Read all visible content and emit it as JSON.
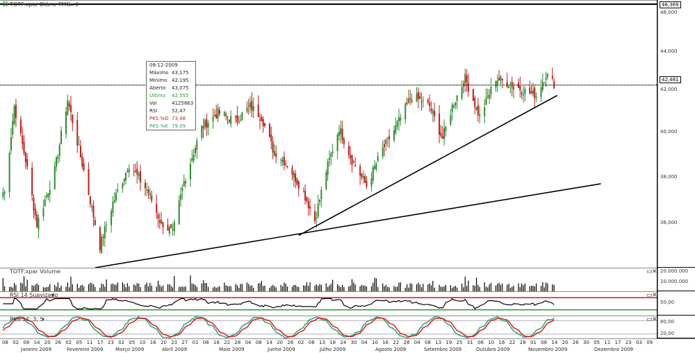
{
  "header": {
    "title": "TOTF:xpar Diário TMG=0",
    "menu_arrow": "▾"
  },
  "price_axis": {
    "ticks": [
      "46,000",
      "44,000",
      "42,000",
      "40,000",
      "38,000",
      "36,000"
    ],
    "top_tag": "46,369",
    "last_tag": "42,481"
  },
  "info": {
    "date": "08-12-2009",
    "rows": [
      {
        "k": "Máximo",
        "v": "43,175",
        "c": "#222"
      },
      {
        "k": "Mínimo",
        "v": "42,195",
        "c": "#222"
      },
      {
        "k": "Aberto",
        "v": "43,075",
        "c": "#222"
      },
      {
        "k": "Último",
        "v": "42,555",
        "c": "#2a9a2a"
      },
      {
        "k": "Vol",
        "v": "4125863",
        "c": "#222"
      },
      {
        "k": "RSI",
        "v": "52,47",
        "c": "#222"
      },
      {
        "k": "PKS %D",
        "v": "73,48",
        "c": "#d02020"
      },
      {
        "k": "PKS %K",
        "v": "79,09",
        "c": "#2a9a6a"
      }
    ]
  },
  "volume": {
    "title": "TOTF:xpar Volume",
    "ticks": [
      "20.000.000",
      "10.000.000"
    ]
  },
  "rsi": {
    "title": "RSI 14 Suavizado",
    "tick": "50,00"
  },
  "pks": {
    "title": "PKS 14; 3; 5",
    "ticks": [
      "80,00",
      "20,00"
    ]
  },
  "xaxis": {
    "days": [
      "08",
      "02",
      "08",
      "14",
      "20",
      "26",
      "02",
      "05",
      "11",
      "17",
      "23",
      "02",
      "05",
      "10",
      "16",
      "20",
      "23",
      "27",
      "01",
      "08",
      "16",
      "22",
      "28",
      "04",
      "08",
      "14",
      "20",
      "26",
      "02",
      "08",
      "13",
      "18",
      "24",
      "30",
      "04",
      "10",
      "16",
      "22",
      "28",
      "04",
      "08",
      "13",
      "19",
      "25",
      "31",
      "06",
      "10",
      "16",
      "22",
      "28",
      "01",
      "08",
      "14",
      "20",
      "26",
      "30",
      "05",
      "11",
      "17",
      "23",
      "03",
      "09"
    ],
    "months": [
      "Janeiro 2009",
      "Fevereiro 2009",
      "Março 2009",
      "Abril 2009",
      "Maio 2009",
      "Junho 2009",
      "Julho 2009",
      "Agosto 2009",
      "Setembro 2009",
      "Outubro 2009",
      "Novembro 2009",
      "Dezembro 2009"
    ]
  },
  "colors": {
    "up": "#2a8a2a",
    "down": "#c01818",
    "rsi_line": "#000000",
    "pks_d": "#d02020",
    "pks_k": "#2aa07a",
    "limit_red": "#e01010",
    "limit_green": "#20a020"
  },
  "chart_data": {
    "type": "candlestick",
    "title": "TOTF:xpar Diário",
    "ylim": [
      34.0,
      46.4
    ],
    "horizontal_line": 42.481,
    "close_anchors": [
      {
        "d": "2009-01-02",
        "v": 37.5
      },
      {
        "d": "2009-01-08",
        "v": 41.5
      },
      {
        "d": "2009-01-15",
        "v": 39.0
      },
      {
        "d": "2009-01-22",
        "v": 36.0
      },
      {
        "d": "2009-02-02",
        "v": 38.5
      },
      {
        "d": "2009-02-10",
        "v": 41.8
      },
      {
        "d": "2009-02-20",
        "v": 38.5
      },
      {
        "d": "2009-03-02",
        "v": 35.0
      },
      {
        "d": "2009-03-10",
        "v": 37.0
      },
      {
        "d": "2009-03-20",
        "v": 38.8
      },
      {
        "d": "2009-04-01",
        "v": 37.5
      },
      {
        "d": "2009-04-08",
        "v": 36.2
      },
      {
        "d": "2009-04-16",
        "v": 35.6
      },
      {
        "d": "2009-04-23",
        "v": 38.0
      },
      {
        "d": "2009-05-04",
        "v": 40.5
      },
      {
        "d": "2009-05-14",
        "v": 41.2
      },
      {
        "d": "2009-05-25",
        "v": 40.8
      },
      {
        "d": "2009-06-03",
        "v": 41.5
      },
      {
        "d": "2009-06-10",
        "v": 41.0
      },
      {
        "d": "2009-06-17",
        "v": 39.5
      },
      {
        "d": "2009-06-26",
        "v": 38.8
      },
      {
        "d": "2009-07-06",
        "v": 37.5
      },
      {
        "d": "2009-07-13",
        "v": 36.2
      },
      {
        "d": "2009-07-20",
        "v": 38.5
      },
      {
        "d": "2009-07-28",
        "v": 40.5
      },
      {
        "d": "2009-08-05",
        "v": 39.0
      },
      {
        "d": "2009-08-14",
        "v": 37.8
      },
      {
        "d": "2009-08-24",
        "v": 39.5
      },
      {
        "d": "2009-09-01",
        "v": 40.5
      },
      {
        "d": "2009-09-11",
        "v": 42.0
      },
      {
        "d": "2009-09-22",
        "v": 41.5
      },
      {
        "d": "2009-09-30",
        "v": 40.0
      },
      {
        "d": "2009-10-06",
        "v": 41.5
      },
      {
        "d": "2009-10-14",
        "v": 42.8
      },
      {
        "d": "2009-10-23",
        "v": 41.0
      },
      {
        "d": "2009-11-02",
        "v": 42.8
      },
      {
        "d": "2009-11-12",
        "v": 42.5
      },
      {
        "d": "2009-11-20",
        "v": 42.2
      },
      {
        "d": "2009-11-27",
        "v": 42.0
      },
      {
        "d": "2009-12-03",
        "v": 43.0
      },
      {
        "d": "2009-12-08",
        "v": 42.555
      }
    ],
    "trendlines": [
      {
        "from": {
          "d": "2009-02-27",
          "v": 34.0
        },
        "to": {
          "d": "2010-01-06",
          "v": 37.9
        }
      },
      {
        "from": {
          "d": "2009-07-03",
          "v": 35.5
        },
        "to": {
          "d": "2009-12-10",
          "v": 42.0
        }
      }
    ],
    "volume_range": [
      0,
      20000000
    ],
    "rsi_range": [
      0,
      100
    ],
    "pks_range": [
      0,
      100
    ]
  }
}
